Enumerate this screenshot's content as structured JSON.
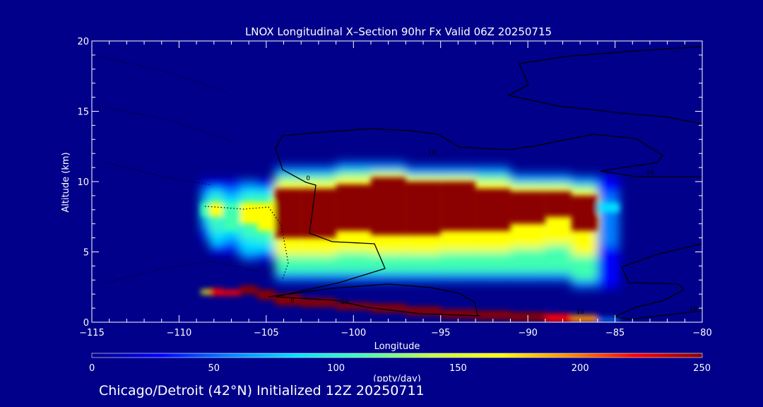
{
  "chart_data": {
    "type": "heatmap",
    "title": "LNOX Longitudinal X–Section 90hr  Fx Valid 06Z 20250715",
    "xlabel": "Longitude",
    "ylabel": "Altitude (km)",
    "xlim": [
      -115,
      -80
    ],
    "ylim": [
      0,
      20
    ],
    "x_ticks": [
      "−115",
      "−110",
      "−105",
      "−100",
      "−95",
      "−90",
      "−85",
      "−80"
    ],
    "x_tick_values": [
      -115,
      -110,
      -105,
      -100,
      -95,
      -90,
      -85,
      -80
    ],
    "y_ticks": [
      "0",
      "5",
      "10",
      "15",
      "20"
    ],
    "y_tick_values": [
      0,
      5,
      10,
      15,
      20
    ],
    "colorbar": {
      "label": "(pptv/day)",
      "min": 0,
      "max": 250,
      "ticks": [
        "0",
        "50",
        "100",
        "150",
        "200",
        "250"
      ],
      "tick_values": [
        0,
        50,
        100,
        150,
        200,
        250
      ],
      "colors": [
        "#00008b",
        "#0000ff",
        "#0080ff",
        "#00e0ff",
        "#40ffb0",
        "#c0ff40",
        "#ffff00",
        "#ff9000",
        "#ff0000",
        "#8b0000"
      ]
    },
    "columns": [
      {
        "lon": -108.5,
        "upper": [
          6.5,
          9.5
        ],
        "core": [
          7.5,
          8.5
        ],
        "upper_max": 110,
        "lower": [
          2.0,
          2.3
        ],
        "lower_max": 170
      },
      {
        "lon": -108.0,
        "upper": [
          5.5,
          9.5
        ],
        "core": [
          7.5,
          8.5
        ],
        "upper_max": 160,
        "lower": [
          1.9,
          2.4
        ],
        "lower_max": 230
      },
      {
        "lon": -107.0,
        "upper": [
          5.5,
          9.5
        ],
        "core": [
          6.5,
          8.5
        ],
        "upper_max": 110,
        "lower": [
          1.9,
          2.3
        ],
        "lower_max": 220
      },
      {
        "lon": -106.0,
        "upper": [
          5.0,
          9.5
        ],
        "core": [
          7.0,
          8.5
        ],
        "upper_max": 180,
        "lower": [
          2.0,
          2.6
        ],
        "lower_max": 250
      },
      {
        "lon": -105.0,
        "upper": [
          5.0,
          9.5
        ],
        "core": [
          6.5,
          8.5
        ],
        "upper_max": 160,
        "lower": [
          1.6,
          2.3
        ],
        "lower_max": 250
      },
      {
        "lon": -104.0,
        "upper": [
          3.5,
          10.5
        ],
        "core": [
          6.0,
          9.5
        ],
        "upper_max": 250,
        "lower": [
          1.2,
          2.0
        ],
        "lower_max": 250
      },
      {
        "lon": -102.0,
        "upper": [
          3.5,
          10.5
        ],
        "core": [
          6.0,
          9.5
        ],
        "upper_max": 250,
        "lower": [
          1.1,
          1.7
        ],
        "lower_max": 250
      },
      {
        "lon": -100.0,
        "upper": [
          3.5,
          10.8
        ],
        "core": [
          6.5,
          9.8
        ],
        "upper_max": 250,
        "lower": [
          0.9,
          1.4
        ],
        "lower_max": 250
      },
      {
        "lon": -98.0,
        "upper": [
          3.5,
          10.8
        ],
        "core": [
          6.2,
          10.3
        ],
        "upper_max": 250,
        "lower": [
          0.7,
          1.3
        ],
        "lower_max": 250
      },
      {
        "lon": -96.0,
        "upper": [
          3.5,
          10.5
        ],
        "core": [
          6.2,
          10.0
        ],
        "upper_max": 250,
        "lower": [
          0.5,
          1.1
        ],
        "lower_max": 250
      },
      {
        "lon": -94.0,
        "upper": [
          3.5,
          10.5
        ],
        "core": [
          6.5,
          10.0
        ],
        "upper_max": 250,
        "lower": [
          0.3,
          0.9
        ],
        "lower_max": 250
      },
      {
        "lon": -92.0,
        "upper": [
          3.5,
          10.5
        ],
        "core": [
          6.5,
          9.5
        ],
        "upper_max": 250,
        "lower": [
          0.2,
          0.8
        ],
        "lower_max": 250
      },
      {
        "lon": -90.0,
        "upper": [
          3.5,
          10.0
        ],
        "core": [
          7.0,
          9.3
        ],
        "upper_max": 250,
        "lower": [
          0.1,
          0.7
        ],
        "lower_max": 250
      },
      {
        "lon": -88.0,
        "upper": [
          3.5,
          10.0
        ],
        "core": [
          7.5,
          9.3
        ],
        "upper_max": 250,
        "lower": [
          0.0,
          0.6
        ],
        "lower_max": 230
      },
      {
        "lon": -87.0,
        "upper": [
          3.0,
          9.8
        ],
        "core": [
          6.5,
          9.0
        ],
        "upper_max": 250,
        "lower": [
          0.0,
          0.5
        ],
        "lower_max": 200
      },
      {
        "lon": -85.0,
        "upper": [
          3.0,
          9.8
        ],
        "core": [
          7.8,
          8.5
        ],
        "upper_max": 90,
        "lower": [
          0.0,
          0.3
        ],
        "lower_max": 60
      }
    ],
    "contour_labels": [
      {
        "text": "0",
        "lon": -102.6,
        "alt": 10.1
      },
      {
        "text": "0",
        "lon": -103.5,
        "alt": 1.4
      },
      {
        "text": "10",
        "lon": -87.0,
        "alt": 0.6
      },
      {
        "text": "10",
        "lon": -83.0,
        "alt": 10.5
      },
      {
        "text": "10",
        "lon": -95.5,
        "alt": 11.9
      },
      {
        "text": "10",
        "lon": -100.5,
        "alt": 1.3
      },
      {
        "text": "10",
        "lon": -80.5,
        "alt": 0.8
      }
    ]
  },
  "caption": "Chicago/Detroit (42°N) Initialized 12Z 20250711"
}
